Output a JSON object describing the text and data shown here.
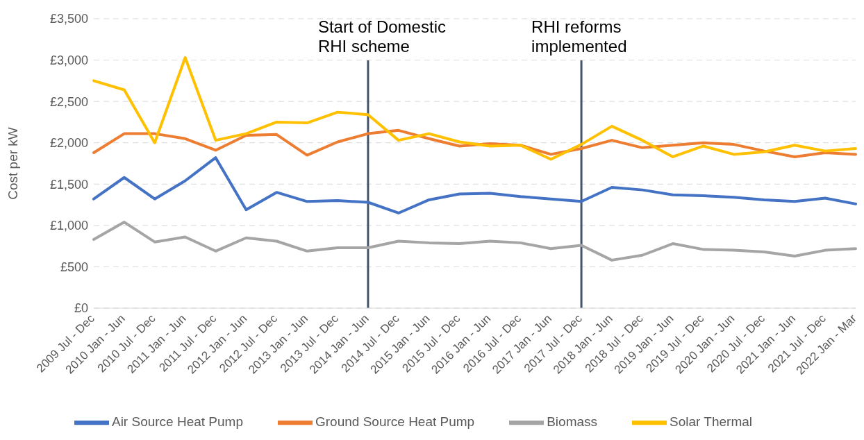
{
  "chart_data": {
    "type": "line",
    "ylabel": "Cost per kW",
    "categories": [
      "2009 Jul - Dec",
      "2010 Jan - Jun",
      "2010 Jul - Dec",
      "2011 Jan - Jun",
      "2011 Jul - Dec",
      "2012 Jan - Jun",
      "2012 Jul - Dec",
      "2013 Jan - Jun",
      "2013 Jul - Dec",
      "2014 Jan - Jun",
      "2014 Jul - Dec",
      "2015 Jan - Jun",
      "2015 Jul - Dec",
      "2016 Jan - Jun",
      "2016 Jul - Dec",
      "2017 Jan - Jun",
      "2017 Jul - Dec",
      "2018 Jan - Jun",
      "2018 Jul - Dec",
      "2019 Jan - Jun",
      "2019 Jul - Dec",
      "2020 Jan - Jun",
      "2020 Jul - Dec",
      "2021 Jan - Jun",
      "2021 Jul - Dec",
      "2022 Jan - Mar"
    ],
    "series": [
      {
        "name": "Air Source Heat Pump",
        "color": "#4472c4",
        "values": [
          1320,
          1580,
          1320,
          1540,
          1820,
          1190,
          1400,
          1290,
          1300,
          1280,
          1150,
          1310,
          1380,
          1390,
          1350,
          1320,
          1290,
          1460,
          1430,
          1370,
          1360,
          1340,
          1310,
          1290,
          1330,
          1260
        ]
      },
      {
        "name": "Ground Source Heat Pump",
        "color": "#ed7d31",
        "values": [
          1880,
          2110,
          2110,
          2050,
          1910,
          2090,
          2100,
          1850,
          2010,
          2110,
          2150,
          2050,
          1960,
          1990,
          1970,
          1860,
          1930,
          2030,
          1940,
          1970,
          2000,
          1980,
          1900,
          1830,
          1880,
          1860
        ]
      },
      {
        "name": "Biomass",
        "color": "#a5a5a5",
        "values": [
          830,
          1040,
          800,
          860,
          690,
          850,
          810,
          690,
          730,
          730,
          810,
          790,
          780,
          810,
          790,
          720,
          760,
          580,
          640,
          780,
          710,
          700,
          680,
          630,
          700,
          720
        ]
      },
      {
        "name": "Solar Thermal",
        "color": "#ffc000",
        "values": [
          2750,
          2640,
          2000,
          3030,
          2030,
          2110,
          2250,
          2240,
          2370,
          2340,
          2030,
          2110,
          2010,
          1960,
          1970,
          1800,
          1980,
          2200,
          2030,
          1830,
          1960,
          1860,
          1890,
          1970,
          1900,
          1930
        ]
      }
    ],
    "ylim": [
      0,
      3500
    ],
    "yticks": [
      {
        "value": 0,
        "label": "£0"
      },
      {
        "value": 500,
        "label": "£500"
      },
      {
        "value": 1000,
        "label": "£1,000"
      },
      {
        "value": 1500,
        "label": "£1,500"
      },
      {
        "value": 2000,
        "label": "£2,000"
      },
      {
        "value": 2500,
        "label": "£2,500"
      },
      {
        "value": 3000,
        "label": "£3,000"
      },
      {
        "value": 3500,
        "label": "£3,500"
      }
    ],
    "ref_lines": [
      {
        "axis": "x",
        "value": "2014 Jan - Jun",
        "label": "Start of Domestic\nRHI scheme",
        "color": "#44546a"
      },
      {
        "axis": "x",
        "value": "2017 Jul - Dec",
        "label": "RHI reforms\nimplemented",
        "color": "#44546a"
      }
    ],
    "grid": "y",
    "legend": "bottom",
    "marker": "none",
    "line_style": "solid"
  }
}
